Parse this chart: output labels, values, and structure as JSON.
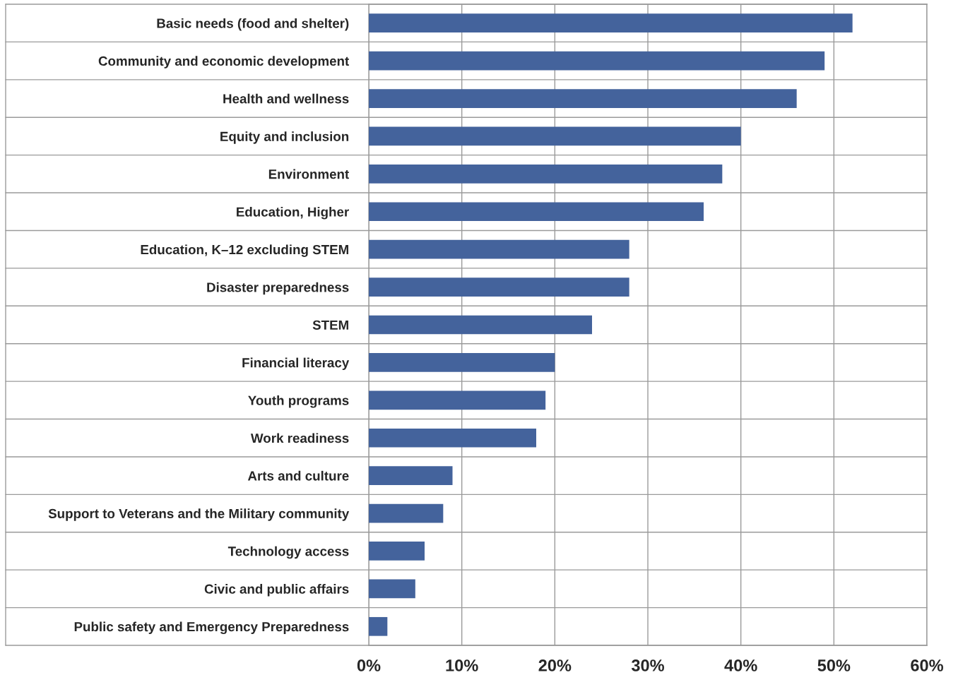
{
  "chart_data": {
    "type": "bar",
    "orientation": "horizontal",
    "categories": [
      "Basic needs (food and shelter)",
      "Community and economic development",
      "Health and wellness",
      "Equity and inclusion",
      "Environment",
      "Education, Higher",
      "Education, K–12 excluding STEM",
      "Disaster preparedness",
      "STEM",
      "Financial literacy",
      "Youth programs",
      "Work readiness",
      "Arts and culture",
      "Support to Veterans and the Military community",
      "Technology access",
      "Civic and public affairs",
      "Public safety and Emergency Preparedness"
    ],
    "values": [
      52,
      49,
      46,
      40,
      38,
      36,
      28,
      28,
      24,
      20,
      19,
      18,
      9,
      8,
      6,
      5,
      2
    ],
    "color": "#44639c",
    "xlim": [
      0,
      60
    ],
    "xticks": [
      {
        "value": 0,
        "label": "0%"
      },
      {
        "value": 10,
        "label": "10%"
      },
      {
        "value": 20,
        "label": "20%"
      },
      {
        "value": 30,
        "label": "30%"
      },
      {
        "value": 40,
        "label": "40%"
      },
      {
        "value": 50,
        "label": "50%"
      },
      {
        "value": 60,
        "label": "60%"
      }
    ],
    "grid": "x"
  }
}
